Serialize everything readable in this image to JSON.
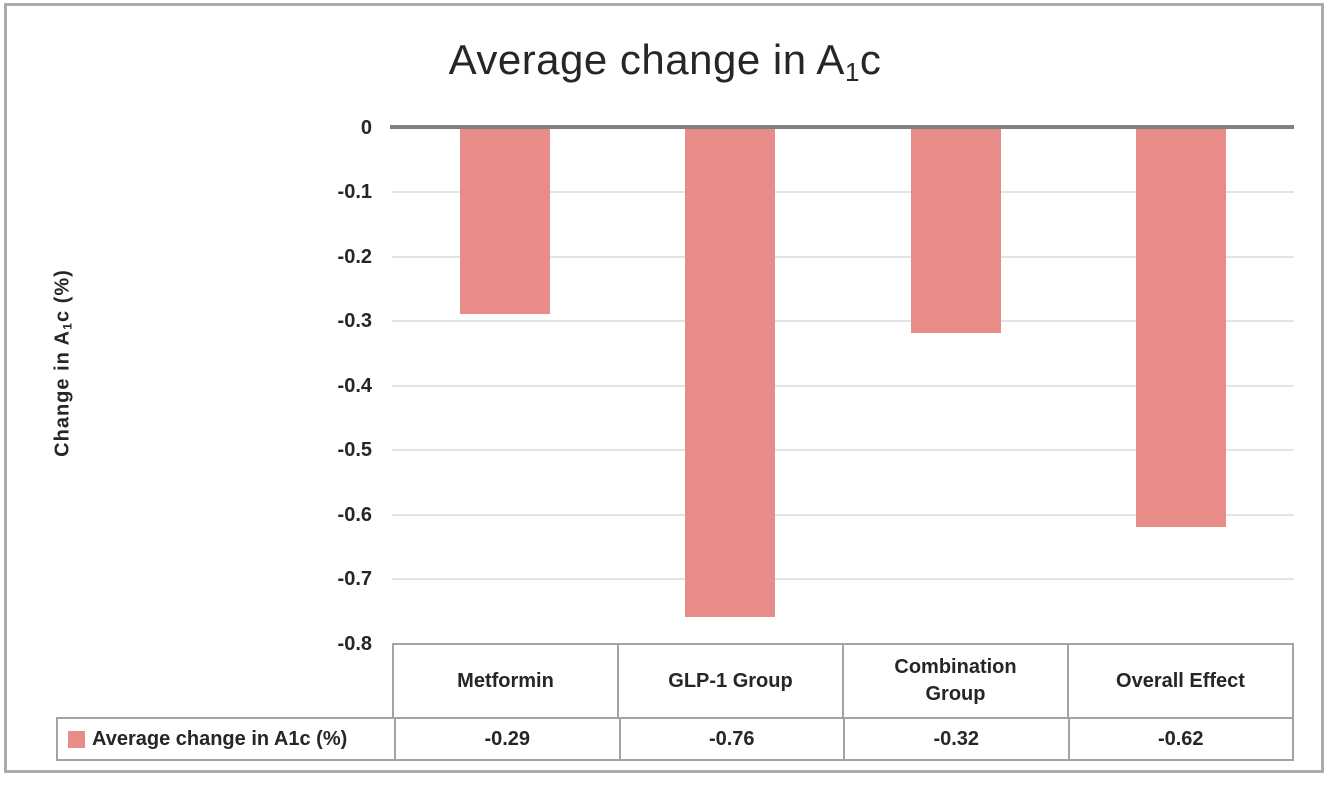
{
  "title": {
    "prefix": "Average change in A",
    "sub": "1",
    "suffix": "c"
  },
  "y_axis": {
    "title_prefix": "Change in A",
    "title_sub": "1",
    "title_suffix": "c (%)",
    "tick_labels": [
      "0",
      "-0.1",
      "-0.2",
      "-0.3",
      "-0.4",
      "-0.5",
      "-0.6",
      "-0.7",
      "-0.8"
    ]
  },
  "legend": {
    "label": "Average change in A1c (%)"
  },
  "table": {
    "display_values": [
      "-0.29",
      "-0.76",
      "-0.32",
      "-0.62"
    ]
  },
  "colors": {
    "bar": "#e78c89",
    "zero_line": "#808080",
    "gridline": "#e3e3e3",
    "table_border": "#a3a3a3",
    "frame_border": "#ababab",
    "text": "#262626"
  },
  "chart_data": {
    "type": "bar",
    "title": "Average change in A1c",
    "ylabel": "Change in A1c (%)",
    "xlabel": "",
    "categories": [
      "Metformin",
      "GLP-1 Group",
      "Combination Group",
      "Overall Effect"
    ],
    "series": [
      {
        "name": "Average change in A1c (%)",
        "values": [
          -0.29,
          -0.76,
          -0.32,
          -0.62
        ]
      }
    ],
    "ylim": [
      -0.8,
      0
    ],
    "yticks": [
      0,
      -0.1,
      -0.2,
      -0.3,
      -0.4,
      -0.5,
      -0.6,
      -0.7,
      -0.8
    ],
    "grid": true,
    "legend_position": "bottom-table",
    "bar_color": "#e78c89"
  }
}
